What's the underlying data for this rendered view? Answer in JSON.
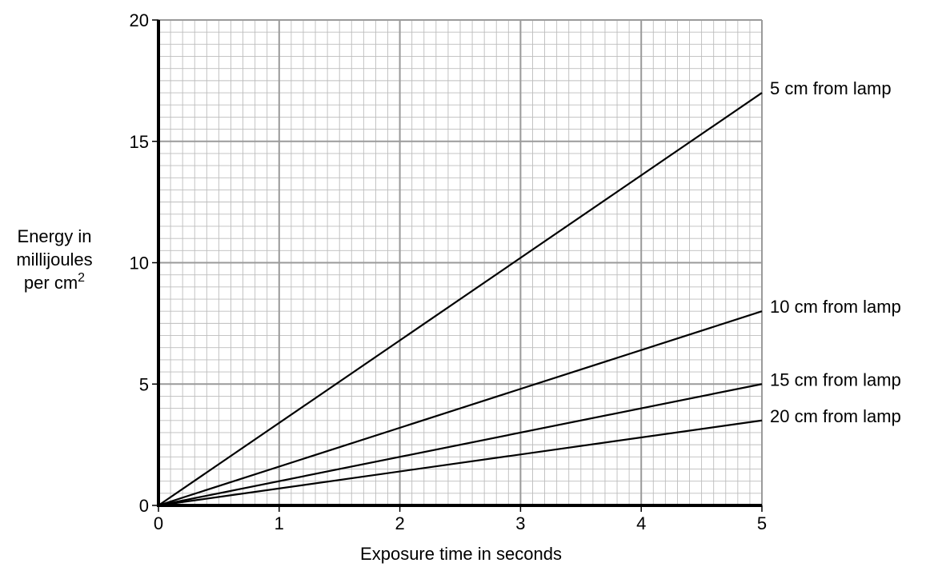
{
  "chart_data": {
    "type": "line",
    "xlabel": "Exposure time in seconds",
    "ylabel_lines": [
      "Energy in",
      "millijoules",
      "per cm"
    ],
    "ylabel_superscript": "2",
    "xlim": [
      0,
      5
    ],
    "ylim": [
      0,
      20
    ],
    "x_ticks": [
      0,
      1,
      2,
      3,
      4,
      5
    ],
    "y_ticks": [
      0,
      5,
      10,
      15,
      20
    ],
    "grid": true,
    "minor_divisions_per_unit_x": 10,
    "minor_divisions_per_unit_y": 2.5,
    "series": [
      {
        "name": "5 cm from lamp",
        "x": [
          0,
          5
        ],
        "y": [
          0,
          17
        ]
      },
      {
        "name": "10 cm from lamp",
        "x": [
          0,
          5
        ],
        "y": [
          0,
          8
        ]
      },
      {
        "name": "15 cm from lamp",
        "x": [
          0,
          5
        ],
        "y": [
          0,
          5
        ]
      },
      {
        "name": "20 cm from lamp",
        "x": [
          0,
          5
        ],
        "y": [
          0,
          3.5
        ]
      }
    ],
    "colors": {
      "major_grid": "#9a9a9a",
      "minor_grid": "#bdbdbd",
      "axis": "#000000",
      "line": "#000000"
    }
  }
}
